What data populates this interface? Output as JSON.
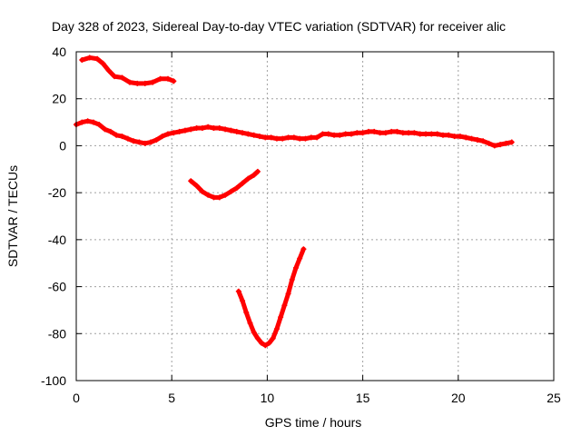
{
  "chart_data": {
    "type": "scatter",
    "title": "Day 328 of 2023, Sidereal Day-to-day VTEC variation (SDTVAR) for receiver alic",
    "xlabel": "GPS time / hours",
    "ylabel": "SDTVAR / TECUs",
    "xlim": [
      0,
      25
    ],
    "ylim": [
      -100,
      40
    ],
    "xticks": [
      0,
      5,
      10,
      15,
      20,
      25
    ],
    "yticks": [
      -100,
      -80,
      -60,
      -40,
      -20,
      0,
      20,
      40
    ],
    "grid": true,
    "marker_color": "#ff0000",
    "series": [
      {
        "x": [
          0.3,
          0.7,
          1.1,
          1.4,
          1.7,
          2.0,
          2.4,
          2.8,
          3.2,
          3.6,
          4.0,
          4.4,
          4.8,
          5.1
        ],
        "y": [
          36.5,
          37.5,
          37,
          35,
          32,
          29.5,
          29,
          27,
          26.5,
          26.5,
          27,
          28.5,
          28.5,
          27.5
        ]
      },
      {
        "x": [
          0.0,
          0.3,
          0.6,
          0.9,
          1.2,
          1.5,
          1.8,
          2.1,
          2.4,
          2.7,
          3.0,
          3.3,
          3.6,
          3.9,
          4.2,
          4.5,
          4.8,
          5.1,
          5.4,
          5.7,
          6.0,
          6.3,
          6.6,
          6.9,
          7.2,
          7.5,
          7.8,
          8.1,
          8.4,
          8.7,
          9.0,
          9.3,
          9.6,
          9.9,
          10.2,
          10.5,
          10.8,
          11.1,
          11.4,
          11.7,
          12.0,
          12.3,
          12.6,
          12.9,
          13.2,
          13.5,
          13.8,
          14.1,
          14.4,
          14.7,
          15.0,
          15.3,
          15.6,
          15.9,
          16.2,
          16.5,
          16.8,
          17.1,
          17.4,
          17.7,
          18.0,
          18.3,
          18.6,
          18.9,
          19.2,
          19.5,
          19.8,
          20.1,
          20.4,
          20.7,
          21.0,
          21.3,
          21.6,
          21.9,
          22.2,
          22.5,
          22.8
        ],
        "y": [
          9,
          10,
          10.5,
          10,
          9,
          7,
          6,
          4.5,
          4,
          3,
          2,
          1.5,
          1,
          1.5,
          2.5,
          4,
          5,
          5.5,
          6,
          6.5,
          7,
          7.5,
          7.5,
          8,
          7.5,
          7.5,
          7,
          6.5,
          6,
          5.5,
          5,
          4.5,
          4,
          3.5,
          3.5,
          3,
          3,
          3.5,
          3.5,
          3,
          3,
          3.5,
          3.5,
          5,
          5,
          4.5,
          4.5,
          5,
          5,
          5.5,
          5.5,
          6,
          6,
          5.5,
          5.5,
          6,
          6,
          5.5,
          5.5,
          5.5,
          5,
          5,
          5,
          5,
          4.5,
          4.5,
          4,
          4,
          3.5,
          3,
          2.5,
          2,
          1,
          0,
          0.5,
          1,
          1.5
        ]
      },
      {
        "x": [
          6.0,
          6.3,
          6.6,
          6.9,
          7.2,
          7.5,
          7.8,
          8.1,
          8.4,
          8.7,
          9.0,
          9.3,
          9.5
        ],
        "y": [
          -15,
          -17,
          -19.5,
          -21,
          -22,
          -22,
          -21,
          -19.5,
          -18,
          -16,
          -14,
          -12.5,
          -11
        ]
      },
      {
        "x": [
          8.5,
          8.7,
          8.9,
          9.1,
          9.3,
          9.5,
          9.7,
          9.9,
          10.1,
          10.3,
          10.5,
          10.7,
          10.9,
          11.1,
          11.3,
          11.5,
          11.7,
          11.9
        ],
        "y": [
          -62,
          -66,
          -71,
          -75.5,
          -79.5,
          -82,
          -84,
          -85,
          -84,
          -82,
          -78,
          -73,
          -68,
          -63,
          -57,
          -52,
          -48,
          -44
        ]
      }
    ]
  }
}
